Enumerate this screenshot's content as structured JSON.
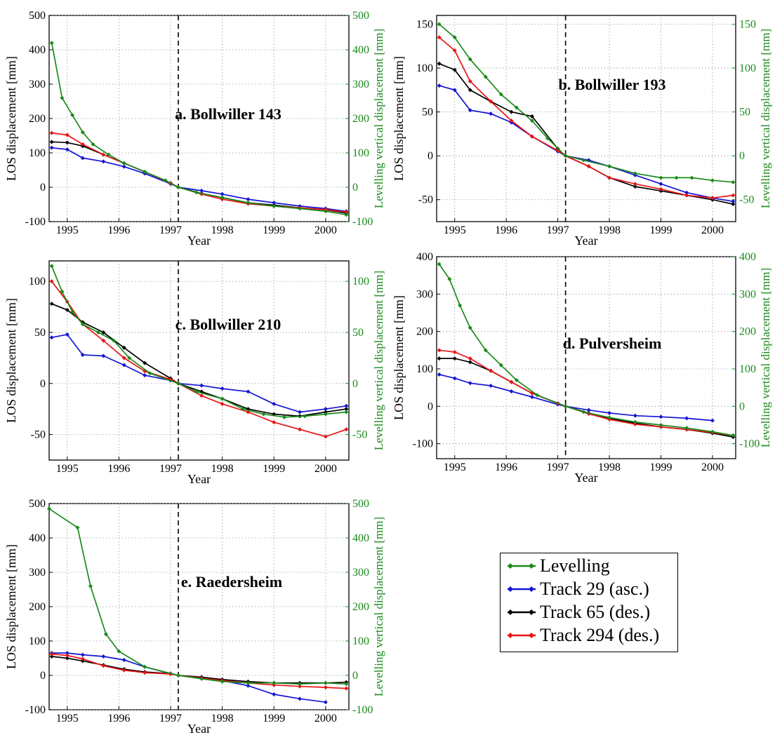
{
  "chart_data": [
    {
      "type": "line",
      "title": "a. Bollwiller 143",
      "xlabel": "Year",
      "ylabel": "LOS displacement [mm]",
      "y2label": "Levelling vertical displacement [mm]",
      "xlim": [
        1994.65,
        2000.45
      ],
      "ylim": [
        -100,
        500
      ],
      "y2lim": [
        -100,
        500
      ],
      "xticks": [
        1995,
        1996,
        1997,
        1998,
        1999,
        2000
      ],
      "yticks": [
        -100,
        0,
        100,
        200,
        300,
        400,
        500
      ],
      "y2ticks": [
        -100,
        0,
        100,
        200,
        300,
        400,
        500
      ],
      "reference_line_x": 1997.15,
      "series": [
        {
          "name": "Levelling",
          "x": [
            1994.7,
            1994.9,
            1995.1,
            1995.3,
            1995.5,
            1995.8,
            1996.1,
            1996.5,
            1996.9,
            1997.15,
            1997.5,
            1998,
            1998.5,
            1999,
            1999.5,
            2000,
            2000.4
          ],
          "y": [
            420,
            260,
            210,
            160,
            125,
            95,
            70,
            45,
            20,
            0,
            -15,
            -30,
            -45,
            -55,
            -62,
            -70,
            -80
          ]
        },
        {
          "name": "Track 29 (asc.)",
          "x": [
            1994.7,
            1995,
            1995.3,
            1995.7,
            1996.1,
            1996.5,
            1997,
            1997.15,
            1997.6,
            1998,
            1998.5,
            1999,
            1999.5,
            2000,
            2000.4
          ],
          "y": [
            115,
            110,
            85,
            75,
            60,
            40,
            10,
            0,
            -10,
            -20,
            -35,
            -45,
            -55,
            -62,
            -70
          ]
        },
        {
          "name": "Track 65 (des.)",
          "x": [
            1994.7,
            1995,
            1995.3,
            1995.7,
            1996.1,
            1996.5,
            1997,
            1997.15,
            1997.6,
            1998,
            1998.5,
            1999,
            1999.5,
            2000,
            2000.4
          ],
          "y": [
            132,
            130,
            120,
            95,
            70,
            45,
            12,
            0,
            -18,
            -30,
            -45,
            -52,
            -60,
            -66,
            -75
          ]
        },
        {
          "name": "Track 294 (des.)",
          "x": [
            1994.7,
            1995,
            1995.3,
            1995.7,
            1996.1,
            1996.5,
            1997,
            1997.15,
            1997.6,
            1998,
            1998.5,
            1999,
            1999.5,
            2000,
            2000.4
          ],
          "y": [
            158,
            152,
            125,
            95,
            70,
            45,
            12,
            0,
            -20,
            -35,
            -48,
            -55,
            -60,
            -65,
            -72
          ]
        }
      ]
    },
    {
      "type": "line",
      "title": "b. Bollwiller 193",
      "xlabel": "Year",
      "ylabel": "LOS displacement [mm]",
      "y2label": "Levelling vertical displacement [mm]",
      "xlim": [
        1994.65,
        2000.45
      ],
      "ylim": [
        -75,
        160
      ],
      "y2lim": [
        -75,
        160
      ],
      "xticks": [
        1995,
        1996,
        1997,
        1998,
        1999,
        2000
      ],
      "yticks": [
        -50,
        0,
        50,
        100,
        150
      ],
      "y2ticks": [
        -50,
        0,
        50,
        100,
        150
      ],
      "reference_line_x": 1997.15,
      "series": [
        {
          "name": "Levelling",
          "x": [
            1994.7,
            1995,
            1995.3,
            1995.6,
            1995.9,
            1996.2,
            1996.5,
            1996.8,
            1997.15,
            1997.5,
            1998,
            1998.5,
            1999,
            1999.3,
            1999.6,
            2000,
            2000.4
          ],
          "y": [
            150,
            135,
            110,
            90,
            70,
            55,
            40,
            20,
            0,
            -5,
            -12,
            -20,
            -25,
            -25,
            -25,
            -28,
            -30
          ]
        },
        {
          "name": "Track 29 (asc.)",
          "x": [
            1994.7,
            1995,
            1995.3,
            1995.7,
            1996.1,
            1996.5,
            1997,
            1997.15,
            1997.6,
            1998,
            1998.5,
            1999,
            1999.5,
            2000,
            2000.4
          ],
          "y": [
            80,
            75,
            52,
            48,
            38,
            22,
            5,
            0,
            -5,
            -12,
            -22,
            -32,
            -42,
            -48,
            -52
          ]
        },
        {
          "name": "Track 65 (des.)",
          "x": [
            1994.7,
            1995,
            1995.3,
            1995.7,
            1996.1,
            1996.5,
            1997,
            1997.15,
            1997.6,
            1998,
            1998.5,
            1999,
            1999.5,
            2000,
            2000.4
          ],
          "y": [
            105,
            98,
            75,
            62,
            50,
            45,
            8,
            0,
            -12,
            -25,
            -35,
            -40,
            -45,
            -50,
            -55
          ]
        },
        {
          "name": "Track 294 (des.)",
          "x": [
            1994.7,
            1995,
            1995.3,
            1995.7,
            1996.1,
            1996.5,
            1997,
            1997.15,
            1997.6,
            1998,
            1998.5,
            1999,
            1999.5,
            2000,
            2000.4
          ],
          "y": [
            135,
            120,
            85,
            62,
            40,
            22,
            6,
            0,
            -12,
            -25,
            -32,
            -38,
            -45,
            -48,
            -45
          ]
        }
      ]
    },
    {
      "type": "line",
      "title": "c. Bollwiller 210",
      "xlabel": "Year",
      "ylabel": "LOS displacement [mm]",
      "y2label": "Levelling vertical displacement [mm]",
      "xlim": [
        1994.65,
        2000.45
      ],
      "ylim": [
        -75,
        120
      ],
      "y2lim": [
        -75,
        120
      ],
      "xticks": [
        1995,
        1996,
        1997,
        1998,
        1999,
        2000
      ],
      "yticks": [
        -50,
        0,
        50,
        100
      ],
      "y2ticks": [
        -50,
        0,
        50,
        100
      ],
      "reference_line_x": 1997.15,
      "series": [
        {
          "name": "Levelling",
          "x": [
            1994.7,
            1994.9,
            1995.1,
            1995.3,
            1995.6,
            1995.9,
            1996.2,
            1996.6,
            1997.15,
            1997.5,
            1998,
            1998.4,
            1998.8,
            1999.2,
            1999.6,
            2000,
            2000.4
          ],
          "y": [
            115,
            90,
            70,
            58,
            50,
            42,
            25,
            10,
            0,
            -8,
            -15,
            -25,
            -30,
            -33,
            -32,
            -30,
            -28
          ]
        },
        {
          "name": "Track 29 (asc.)",
          "x": [
            1994.7,
            1995,
            1995.3,
            1995.7,
            1996.1,
            1996.5,
            1997,
            1997.15,
            1997.6,
            1998,
            1998.5,
            1999,
            1999.5,
            2000,
            2000.4
          ],
          "y": [
            45,
            48,
            28,
            27,
            18,
            8,
            3,
            0,
            -2,
            -5,
            -8,
            -20,
            -28,
            -25,
            -22
          ]
        },
        {
          "name": "Track 65 (des.)",
          "x": [
            1994.7,
            1995,
            1995.3,
            1995.7,
            1996.1,
            1996.5,
            1997,
            1997.15,
            1997.6,
            1998,
            1998.5,
            1999,
            1999.5,
            2000,
            2000.4
          ],
          "y": [
            78,
            72,
            60,
            50,
            35,
            20,
            5,
            0,
            -8,
            -15,
            -25,
            -30,
            -32,
            -28,
            -25
          ]
        },
        {
          "name": "Track 294 (des.)",
          "x": [
            1994.7,
            1995,
            1995.3,
            1995.7,
            1996.1,
            1996.5,
            1997,
            1997.15,
            1997.6,
            1998,
            1998.5,
            1999,
            1999.5,
            2000,
            2000.4
          ],
          "y": [
            100,
            80,
            58,
            42,
            25,
            12,
            4,
            0,
            -12,
            -20,
            -28,
            -38,
            -45,
            -52,
            -45
          ]
        }
      ]
    },
    {
      "type": "line",
      "title": "d. Pulversheim",
      "xlabel": "Year",
      "ylabel": "LOS displacement [mm]",
      "y2label": "Levelling vertical displacement [mm]",
      "xlim": [
        1994.65,
        2000.45
      ],
      "ylim": [
        -140,
        400
      ],
      "y2lim": [
        -140,
        400
      ],
      "xticks": [
        1995,
        1996,
        1997,
        1998,
        1999,
        2000
      ],
      "yticks": [
        -100,
        0,
        100,
        200,
        300,
        400
      ],
      "y2ticks": [
        -100,
        0,
        100,
        200,
        300,
        400
      ],
      "reference_line_x": 1997.15,
      "series": [
        {
          "name": "Levelling",
          "x": [
            1994.7,
            1994.9,
            1995.1,
            1995.3,
            1995.6,
            1995.9,
            1996.2,
            1996.6,
            1997.15,
            1997.5,
            1998,
            1998.5,
            1999,
            1999.5,
            2000,
            2000.4
          ],
          "y": [
            380,
            340,
            270,
            210,
            150,
            110,
            70,
            30,
            0,
            -15,
            -30,
            -42,
            -50,
            -58,
            -68,
            -78
          ]
        },
        {
          "name": "Track 29 (asc.)",
          "x": [
            1994.7,
            1995,
            1995.3,
            1995.7,
            1996.1,
            1996.5,
            1997,
            1997.15,
            1997.6,
            1998,
            1998.5,
            1999,
            1999.5,
            2000
          ],
          "y": [
            85,
            75,
            62,
            55,
            40,
            25,
            5,
            0,
            -10,
            -18,
            -25,
            -28,
            -32,
            -38
          ]
        },
        {
          "name": "Track 65 (des.)",
          "x": [
            1994.7,
            1995,
            1995.3,
            1995.7,
            1996.1,
            1996.5,
            1997,
            1997.15,
            1997.6,
            1998,
            1998.5,
            1999,
            1999.5,
            2000,
            2000.4
          ],
          "y": [
            128,
            128,
            118,
            95,
            65,
            35,
            8,
            0,
            -18,
            -32,
            -45,
            -55,
            -62,
            -72,
            -82
          ]
        },
        {
          "name": "Track 294 (des.)",
          "x": [
            1994.7,
            1995,
            1995.3,
            1995.7,
            1996.1,
            1996.5,
            1997,
            1997.15,
            1997.6,
            1998,
            1998.5,
            1999,
            1999.5,
            2000,
            2000.4
          ],
          "y": [
            150,
            145,
            128,
            95,
            65,
            35,
            8,
            0,
            -20,
            -35,
            -48,
            -55,
            -62,
            -70,
            -78
          ]
        }
      ]
    },
    {
      "type": "line",
      "title": "e. Raedersheim",
      "xlabel": "Year",
      "ylabel": "LOS displacement [mm]",
      "y2label": "Levelling vertical displacement [mm]",
      "xlim": [
        1994.65,
        2000.45
      ],
      "ylim": [
        -100,
        500
      ],
      "y2lim": [
        -100,
        500
      ],
      "xticks": [
        1995,
        1996,
        1997,
        1998,
        1999,
        2000
      ],
      "yticks": [
        -100,
        0,
        100,
        200,
        300,
        400,
        500
      ],
      "y2ticks": [
        -100,
        0,
        100,
        200,
        300,
        400,
        500
      ],
      "reference_line_x": 1997.15,
      "series": [
        {
          "name": "Levelling",
          "x": [
            1994.65,
            1995.2,
            1995.45,
            1995.75,
            1996,
            1996.5,
            1997.15,
            1997.6,
            1998,
            1998.5,
            1999,
            1999.5,
            2000,
            2000.4
          ],
          "y": [
            485,
            430,
            260,
            120,
            70,
            25,
            0,
            -10,
            -18,
            -22,
            -22,
            -25,
            -22,
            -25
          ]
        },
        {
          "name": "Track 29 (asc.)",
          "x": [
            1994.7,
            1995,
            1995.3,
            1995.7,
            1996.1,
            1996.5,
            1997,
            1997.15,
            1997.6,
            1998,
            1998.5,
            1999,
            1999.5,
            2000
          ],
          "y": [
            65,
            65,
            60,
            55,
            45,
            25,
            5,
            0,
            -8,
            -15,
            -30,
            -55,
            -68,
            -78
          ]
        },
        {
          "name": "Track 65 (des.)",
          "x": [
            1994.7,
            1995,
            1995.3,
            1995.7,
            1996.1,
            1996.5,
            1997,
            1997.15,
            1997.6,
            1998,
            1998.5,
            1999,
            1999.5,
            2000,
            2000.4
          ],
          "y": [
            55,
            50,
            42,
            30,
            18,
            10,
            5,
            0,
            -5,
            -12,
            -18,
            -22,
            -22,
            -22,
            -20
          ]
        },
        {
          "name": "Track 294 (des.)",
          "x": [
            1994.7,
            1995,
            1995.3,
            1995.7,
            1996.1,
            1996.5,
            1997,
            1997.15,
            1997.6,
            1998,
            1998.5,
            1999,
            1999.5,
            2000,
            2000.4
          ],
          "y": [
            62,
            58,
            48,
            28,
            15,
            8,
            4,
            0,
            -8,
            -15,
            -22,
            -28,
            -32,
            -35,
            -38
          ]
        }
      ]
    }
  ],
  "legend": {
    "entries": [
      "Levelling",
      "Track 29 (asc.)",
      "Track 65 (des.)",
      "Track 294 (des.)"
    ]
  },
  "colors": {
    "Levelling": "#1a8a1a",
    "Track 29 (asc.)": "#1414d4",
    "Track 65 (des.)": "#000000",
    "Track 294 (des.)": "#e81414",
    "right_axis": "#1a8a1a"
  }
}
